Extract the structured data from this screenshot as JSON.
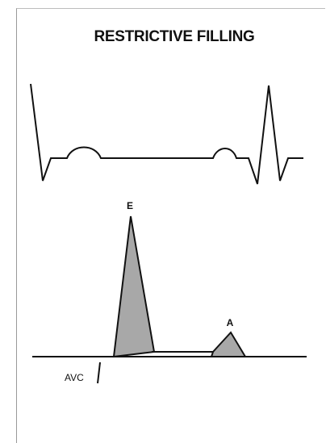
{
  "diagram": {
    "title": "RESTRICTIVE FILLING",
    "ecg_label": "",
    "wave_labels": {
      "e": "E",
      "a": "A"
    },
    "marker_label": "AVC",
    "colors": {
      "line": "#111111",
      "wave_fill": "#a8a8a8",
      "background": "#ffffff"
    }
  }
}
